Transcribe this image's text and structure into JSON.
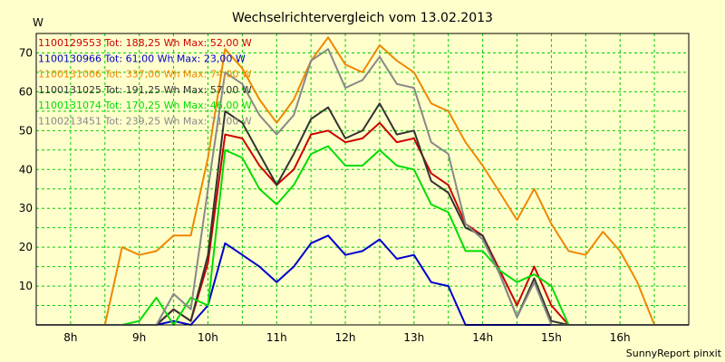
{
  "chart_data": {
    "type": "line",
    "title": "Wechselrichtervergleich vom 13.02.2013",
    "ylabel": "W",
    "xlabel": "",
    "footer": "SunnyReport pinxit",
    "ylim": [
      0,
      75
    ],
    "xlim": [
      7.5,
      17.0
    ],
    "y_ticks": [
      10,
      20,
      30,
      40,
      50,
      60,
      70
    ],
    "x_ticks": [
      {
        "label": "8h",
        "value": 8
      },
      {
        "label": "9h",
        "value": 9
      },
      {
        "label": "10h",
        "value": 10
      },
      {
        "label": "11h",
        "value": 11
      },
      {
        "label": "12h",
        "value": 12
      },
      {
        "label": "13h",
        "value": 13
      },
      {
        "label": "14h",
        "value": 14
      },
      {
        "label": "15h",
        "value": 15
      },
      {
        "label": "16h",
        "value": 16
      }
    ],
    "grid": true,
    "legend_position": "top-left",
    "x": [
      7.5,
      7.75,
      8.0,
      8.25,
      8.5,
      8.75,
      9.0,
      9.25,
      9.5,
      9.75,
      10.0,
      10.25,
      10.5,
      10.75,
      11.0,
      11.25,
      11.5,
      11.75,
      12.0,
      12.25,
      12.5,
      12.75,
      13.0,
      13.25,
      13.5,
      13.75,
      14.0,
      14.25,
      14.5,
      14.75,
      15.0,
      15.25,
      15.5,
      15.75,
      16.0,
      16.25,
      16.5,
      16.75,
      17.0
    ],
    "series": [
      {
        "name": "1100129553",
        "legend": "1100129553 Tot: 188,25 Wh Max: 52,00 W",
        "color": "#cc0000",
        "values": [
          0,
          0,
          0,
          0,
          0,
          0,
          0,
          0,
          4,
          1,
          16,
          49,
          48,
          41,
          36,
          40,
          49,
          50,
          47,
          48,
          52,
          47,
          48,
          39,
          36,
          26,
          23,
          14,
          5,
          15,
          5,
          0,
          0,
          0,
          0,
          0,
          0,
          0,
          0
        ]
      },
      {
        "name": "1100130966",
        "legend": "1100130966 Tot: 61,00 Wh Max: 23,00 W",
        "color": "#0000cc",
        "values": [
          0,
          0,
          0,
          0,
          0,
          0,
          0,
          0,
          1,
          0,
          5,
          21,
          18,
          15,
          11,
          15,
          21,
          23,
          18,
          19,
          22,
          17,
          18,
          11,
          10,
          0,
          0,
          0,
          0,
          0,
          0,
          0,
          0,
          0,
          0,
          0,
          0,
          0,
          0
        ]
      },
      {
        "name": "1100131006",
        "legend": "1100131006 Tot: 337,00 Wh Max: 74,00 W",
        "color": "#ee8800",
        "values": [
          0,
          0,
          0,
          0,
          0,
          20,
          18,
          19,
          23,
          23,
          43,
          71,
          66,
          58,
          52,
          58,
          68,
          74,
          67,
          65,
          72,
          68,
          65,
          57,
          55,
          47,
          41,
          34,
          27,
          35,
          26,
          19,
          18,
          24,
          19,
          11,
          0,
          0,
          0
        ]
      },
      {
        "name": "1100131025",
        "legend": "1100131025 Tot: 191,25 Wh Max: 57,00 W",
        "color": "#333333",
        "values": [
          0,
          0,
          0,
          0,
          0,
          0,
          0,
          0,
          4,
          1,
          18,
          55,
          52,
          44,
          36,
          44,
          53,
          56,
          48,
          50,
          57,
          49,
          50,
          37,
          34,
          25,
          23,
          13,
          2,
          12,
          1,
          0,
          0,
          0,
          0,
          0,
          0,
          0,
          0
        ]
      },
      {
        "name": "1100131074",
        "legend": "1100131074 Tot: 170,25 Wh Max: 46,00 W",
        "color": "#00dd00",
        "values": [
          0,
          0,
          0,
          0,
          0,
          0,
          1,
          7,
          0,
          7,
          5,
          45,
          43,
          35,
          31,
          36,
          44,
          46,
          41,
          41,
          45,
          41,
          40,
          31,
          29,
          19,
          19,
          14,
          11,
          13,
          10,
          0,
          0,
          0,
          0,
          0,
          0,
          0,
          0
        ]
      },
      {
        "name": "1100213451",
        "legend": "1100213451 Tot: 239,25 Wh Max: 71,00 W",
        "color": "#888888",
        "values": [
          0,
          0,
          0,
          0,
          0,
          0,
          0,
          0,
          8,
          4,
          35,
          65,
          62,
          54,
          49,
          54,
          68,
          71,
          61,
          63,
          69,
          62,
          61,
          47,
          44,
          26,
          22,
          13,
          2,
          11,
          0,
          0,
          0,
          0,
          0,
          0,
          0,
          0,
          0
        ]
      }
    ]
  }
}
